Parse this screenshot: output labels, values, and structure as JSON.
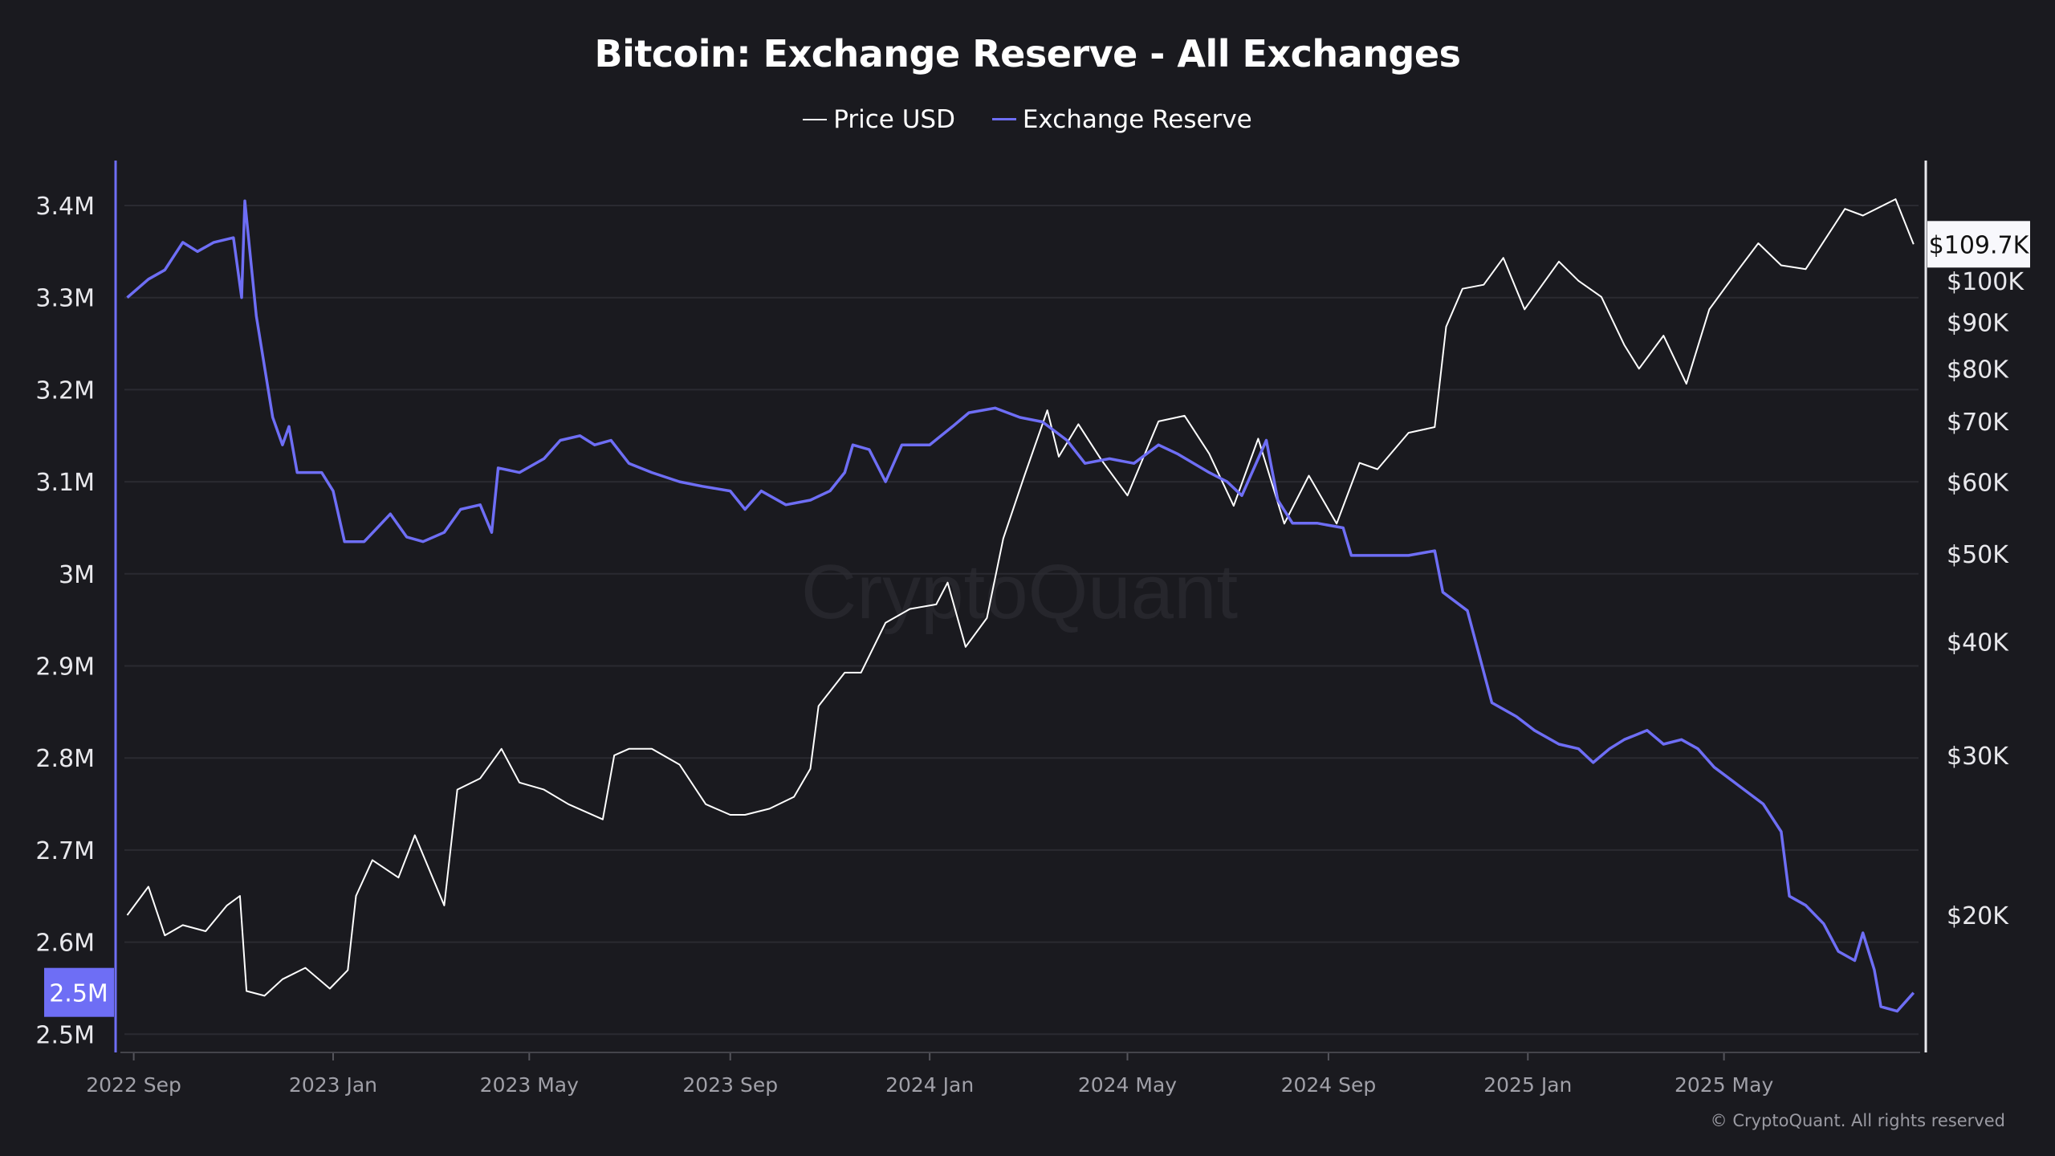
{
  "chart_data": {
    "type": "line",
    "title": "Bitcoin: Exchange Reserve - All Exchanges",
    "legend_position": "top-center",
    "grid": true,
    "copyright": "© CryptoQuant. All rights reserved",
    "watermark": "CryptoQuant",
    "x_ticks": [
      "2022 Sep",
      "2023 Jan",
      "2023 May",
      "2023 Sep",
      "2024 Jan",
      "2024 May",
      "2024 Sep",
      "2025 Jan",
      "2025 May"
    ],
    "x_tick_dates": [
      "2022-09-01",
      "2023-01-01",
      "2023-05-01",
      "2023-09-01",
      "2024-01-01",
      "2024-05-01",
      "2024-09-01",
      "2025-01-01",
      "2025-05-01"
    ],
    "y_left": {
      "ticks": [
        "3.4M",
        "3.3M",
        "3.2M",
        "3.1M",
        "3M",
        "2.9M",
        "2.8M",
        "2.7M",
        "2.6M",
        "2.5M"
      ],
      "tick_values": [
        3.4,
        3.3,
        3.2,
        3.1,
        3.0,
        2.9,
        2.8,
        2.7,
        2.6,
        2.5
      ],
      "range": [
        2.5,
        3.4
      ],
      "unit": "M BTC",
      "current_label": "2.5M"
    },
    "y_right": {
      "scale": "log",
      "ticks": [
        "$100K",
        "$90K",
        "$80K",
        "$70K",
        "$60K",
        "$50K",
        "$40K",
        "$30K",
        "$20K"
      ],
      "tick_values": [
        100,
        90,
        80,
        70,
        60,
        50,
        40,
        30,
        20
      ],
      "unit": "K USD",
      "current_label": "$109.7K"
    },
    "colors": {
      "price": "#ffffff",
      "reserve": "#6e6ef5",
      "background": "#1a1a1f"
    },
    "series": [
      {
        "name": "Price USD",
        "axis": "right",
        "points": [
          [
            "2022-08-28",
            20
          ],
          [
            "2022-09-10",
            21.5
          ],
          [
            "2022-09-20",
            19
          ],
          [
            "2022-10-01",
            19.5
          ],
          [
            "2022-10-15",
            19.2
          ],
          [
            "2022-10-28",
            20.5
          ],
          [
            "2022-11-05",
            21
          ],
          [
            "2022-11-09",
            16.5
          ],
          [
            "2022-11-20",
            16.3
          ],
          [
            "2022-12-01",
            17
          ],
          [
            "2022-12-15",
            17.5
          ],
          [
            "2022-12-30",
            16.6
          ],
          [
            "2023-01-10",
            17.4
          ],
          [
            "2023-01-15",
            21
          ],
          [
            "2023-01-25",
            23
          ],
          [
            "2023-02-10",
            22
          ],
          [
            "2023-02-20",
            24.5
          ],
          [
            "2023-03-10",
            20.5
          ],
          [
            "2023-03-18",
            27.5
          ],
          [
            "2023-04-01",
            28.3
          ],
          [
            "2023-04-14",
            30.5
          ],
          [
            "2023-04-25",
            28
          ],
          [
            "2023-05-10",
            27.5
          ],
          [
            "2023-05-25",
            26.5
          ],
          [
            "2023-06-15",
            25.5
          ],
          [
            "2023-06-22",
            30
          ],
          [
            "2023-07-01",
            30.5
          ],
          [
            "2023-07-15",
            30.5
          ],
          [
            "2023-08-01",
            29.3
          ],
          [
            "2023-08-17",
            26.5
          ],
          [
            "2023-09-01",
            25.8
          ],
          [
            "2023-09-10",
            25.8
          ],
          [
            "2023-09-25",
            26.2
          ],
          [
            "2023-10-10",
            27
          ],
          [
            "2023-10-20",
            29
          ],
          [
            "2023-10-25",
            34
          ],
          [
            "2023-11-10",
            37
          ],
          [
            "2023-11-20",
            37
          ],
          [
            "2023-12-05",
            42
          ],
          [
            "2023-12-20",
            43.5
          ],
          [
            "2024-01-05",
            44
          ],
          [
            "2024-01-12",
            46.5
          ],
          [
            "2024-01-23",
            39.5
          ],
          [
            "2024-02-05",
            42.5
          ],
          [
            "2024-02-15",
            52
          ],
          [
            "2024-02-28",
            61
          ],
          [
            "2024-03-13",
            72
          ],
          [
            "2024-03-20",
            64
          ],
          [
            "2024-04-01",
            69.5
          ],
          [
            "2024-04-15",
            63.5
          ],
          [
            "2024-05-01",
            58
          ],
          [
            "2024-05-20",
            70
          ],
          [
            "2024-06-05",
            71
          ],
          [
            "2024-06-20",
            64.5
          ],
          [
            "2024-07-05",
            56.5
          ],
          [
            "2024-07-20",
            67
          ],
          [
            "2024-08-05",
            54
          ],
          [
            "2024-08-20",
            61
          ],
          [
            "2024-09-06",
            54
          ],
          [
            "2024-09-20",
            63
          ],
          [
            "2024-10-01",
            62
          ],
          [
            "2024-10-20",
            68
          ],
          [
            "2024-11-05",
            69
          ],
          [
            "2024-11-12",
            89
          ],
          [
            "2024-11-22",
            98
          ],
          [
            "2024-12-05",
            99
          ],
          [
            "2024-12-17",
            106
          ],
          [
            "2024-12-30",
            93
          ],
          [
            "2025-01-20",
            105
          ],
          [
            "2025-02-01",
            100
          ],
          [
            "2025-02-15",
            96
          ],
          [
            "2025-03-01",
            85
          ],
          [
            "2025-03-10",
            80
          ],
          [
            "2025-03-25",
            87
          ],
          [
            "2025-04-08",
            77
          ],
          [
            "2025-04-22",
            93
          ],
          [
            "2025-05-10",
            103
          ],
          [
            "2025-05-22",
            110
          ],
          [
            "2025-06-05",
            104
          ],
          [
            "2025-06-20",
            103
          ],
          [
            "2025-07-14",
            120
          ],
          [
            "2025-07-25",
            118
          ],
          [
            "2025-08-14",
            123
          ],
          [
            "2025-08-25",
            109.7
          ]
        ]
      },
      {
        "name": "Exchange Reserve",
        "axis": "left",
        "points": [
          [
            "2022-08-28",
            3.3
          ],
          [
            "2022-09-10",
            3.32
          ],
          [
            "2022-09-20",
            3.33
          ],
          [
            "2022-10-01",
            3.36
          ],
          [
            "2022-10-10",
            3.35
          ],
          [
            "2022-10-20",
            3.36
          ],
          [
            "2022-11-01",
            3.365
          ],
          [
            "2022-11-06",
            3.3
          ],
          [
            "2022-11-08",
            3.405
          ],
          [
            "2022-11-15",
            3.28
          ],
          [
            "2022-11-25",
            3.17
          ],
          [
            "2022-12-01",
            3.14
          ],
          [
            "2022-12-05",
            3.16
          ],
          [
            "2022-12-10",
            3.11
          ],
          [
            "2022-12-25",
            3.11
          ],
          [
            "2023-01-01",
            3.09
          ],
          [
            "2023-01-08",
            3.035
          ],
          [
            "2023-01-20",
            3.035
          ],
          [
            "2023-01-28",
            3.05
          ],
          [
            "2023-02-05",
            3.065
          ],
          [
            "2023-02-15",
            3.04
          ],
          [
            "2023-02-25",
            3.035
          ],
          [
            "2023-03-10",
            3.045
          ],
          [
            "2023-03-20",
            3.07
          ],
          [
            "2023-04-01",
            3.075
          ],
          [
            "2023-04-08",
            3.045
          ],
          [
            "2023-04-12",
            3.115
          ],
          [
            "2023-04-25",
            3.11
          ],
          [
            "2023-05-10",
            3.125
          ],
          [
            "2023-05-20",
            3.145
          ],
          [
            "2023-06-01",
            3.15
          ],
          [
            "2023-06-10",
            3.14
          ],
          [
            "2023-06-20",
            3.145
          ],
          [
            "2023-07-01",
            3.12
          ],
          [
            "2023-07-15",
            3.11
          ],
          [
            "2023-08-01",
            3.1
          ],
          [
            "2023-08-15",
            3.095
          ],
          [
            "2023-09-01",
            3.09
          ],
          [
            "2023-09-10",
            3.07
          ],
          [
            "2023-09-20",
            3.09
          ],
          [
            "2023-10-05",
            3.075
          ],
          [
            "2023-10-20",
            3.08
          ],
          [
            "2023-11-01",
            3.09
          ],
          [
            "2023-11-10",
            3.11
          ],
          [
            "2023-11-15",
            3.14
          ],
          [
            "2023-11-25",
            3.135
          ],
          [
            "2023-12-05",
            3.1
          ],
          [
            "2023-12-15",
            3.14
          ],
          [
            "2024-01-01",
            3.14
          ],
          [
            "2024-01-15",
            3.16
          ],
          [
            "2024-01-25",
            3.175
          ],
          [
            "2024-02-10",
            3.18
          ],
          [
            "2024-02-25",
            3.17
          ],
          [
            "2024-03-10",
            3.165
          ],
          [
            "2024-03-25",
            3.145
          ],
          [
            "2024-04-05",
            3.12
          ],
          [
            "2024-04-20",
            3.125
          ],
          [
            "2024-05-05",
            3.12
          ],
          [
            "2024-05-20",
            3.14
          ],
          [
            "2024-06-01",
            3.13
          ],
          [
            "2024-06-20",
            3.11
          ],
          [
            "2024-07-01",
            3.1
          ],
          [
            "2024-07-10",
            3.085
          ],
          [
            "2024-07-25",
            3.145
          ],
          [
            "2024-08-01",
            3.08
          ],
          [
            "2024-08-10",
            3.055
          ],
          [
            "2024-08-25",
            3.055
          ],
          [
            "2024-09-10",
            3.05
          ],
          [
            "2024-09-15",
            3.02
          ],
          [
            "2024-10-01",
            3.02
          ],
          [
            "2024-10-20",
            3.02
          ],
          [
            "2024-11-05",
            3.025
          ],
          [
            "2024-11-10",
            2.98
          ],
          [
            "2024-11-25",
            2.96
          ],
          [
            "2024-12-01",
            2.92
          ],
          [
            "2024-12-10",
            2.86
          ],
          [
            "2024-12-25",
            2.845
          ],
          [
            "2025-01-05",
            2.83
          ],
          [
            "2025-01-20",
            2.815
          ],
          [
            "2025-02-01",
            2.81
          ],
          [
            "2025-02-10",
            2.795
          ],
          [
            "2025-02-20",
            2.81
          ],
          [
            "2025-03-01",
            2.82
          ],
          [
            "2025-03-15",
            2.83
          ],
          [
            "2025-03-25",
            2.815
          ],
          [
            "2025-04-05",
            2.82
          ],
          [
            "2025-04-15",
            2.81
          ],
          [
            "2025-04-25",
            2.79
          ],
          [
            "2025-05-10",
            2.77
          ],
          [
            "2025-05-25",
            2.75
          ],
          [
            "2025-06-05",
            2.72
          ],
          [
            "2025-06-10",
            2.65
          ],
          [
            "2025-06-20",
            2.64
          ],
          [
            "2025-07-01",
            2.62
          ],
          [
            "2025-07-10",
            2.59
          ],
          [
            "2025-07-20",
            2.58
          ],
          [
            "2025-07-25",
            2.61
          ],
          [
            "2025-08-01",
            2.57
          ],
          [
            "2025-08-05",
            2.53
          ],
          [
            "2025-08-15",
            2.525
          ],
          [
            "2025-08-25",
            2.545
          ]
        ]
      }
    ]
  }
}
